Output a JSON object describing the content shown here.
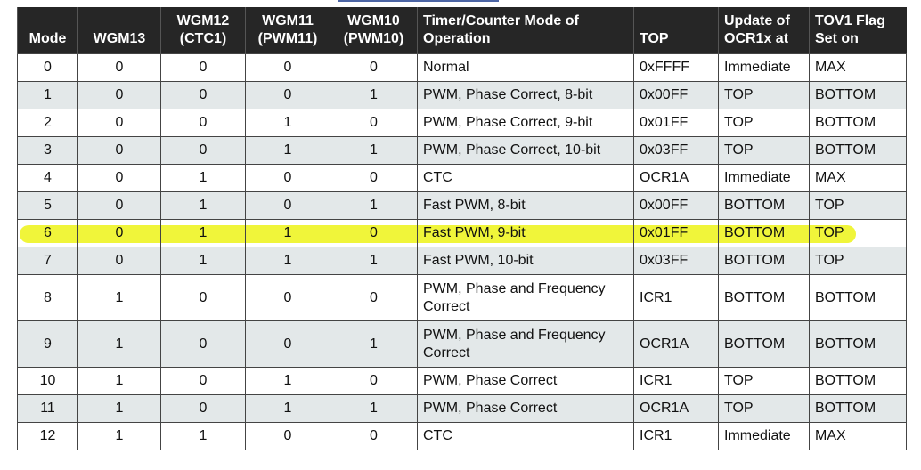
{
  "highlight_color": "#f0f53a",
  "header": [
    "Mode",
    "WGM13",
    "WGM12\n(CTC1)",
    "WGM11\n(PWM11)",
    "WGM10\n(PWM10)",
    "Timer/Counter Mode of\nOperation",
    "TOP",
    "Update of\nOCR1x at",
    "TOV1 Flag\nSet on"
  ],
  "rows": [
    [
      "0",
      "0",
      "0",
      "0",
      "0",
      "Normal",
      "0xFFFF",
      "Immediate",
      "MAX"
    ],
    [
      "1",
      "0",
      "0",
      "0",
      "1",
      "PWM, Phase Correct, 8-bit",
      "0x00FF",
      "TOP",
      "BOTTOM"
    ],
    [
      "2",
      "0",
      "0",
      "1",
      "0",
      "PWM, Phase Correct, 9-bit",
      "0x01FF",
      "TOP",
      "BOTTOM"
    ],
    [
      "3",
      "0",
      "0",
      "1",
      "1",
      "PWM, Phase Correct, 10-bit",
      "0x03FF",
      "TOP",
      "BOTTOM"
    ],
    [
      "4",
      "0",
      "1",
      "0",
      "0",
      "CTC",
      "OCR1A",
      "Immediate",
      "MAX"
    ],
    [
      "5",
      "0",
      "1",
      "0",
      "1",
      "Fast PWM, 8-bit",
      "0x00FF",
      "BOTTOM",
      "TOP"
    ],
    [
      "6",
      "0",
      "1",
      "1",
      "0",
      "Fast PWM, 9-bit",
      "0x01FF",
      "BOTTOM",
      "TOP"
    ],
    [
      "7",
      "0",
      "1",
      "1",
      "1",
      "Fast PWM, 10-bit",
      "0x03FF",
      "BOTTOM",
      "TOP"
    ],
    [
      "8",
      "1",
      "0",
      "0",
      "0",
      "PWM, Phase and Frequency\nCorrect",
      "ICR1",
      "BOTTOM",
      "BOTTOM"
    ],
    [
      "9",
      "1",
      "0",
      "0",
      "1",
      "PWM, Phase and Frequency\nCorrect",
      "OCR1A",
      "BOTTOM",
      "BOTTOM"
    ],
    [
      "10",
      "1",
      "0",
      "1",
      "0",
      "PWM, Phase Correct",
      "ICR1",
      "TOP",
      "BOTTOM"
    ],
    [
      "11",
      "1",
      "0",
      "1",
      "1",
      "PWM, Phase Correct",
      "OCR1A",
      "TOP",
      "BOTTOM"
    ],
    [
      "12",
      "1",
      "1",
      "0",
      "0",
      "CTC",
      "ICR1",
      "Immediate",
      "MAX"
    ]
  ],
  "highlighted_row": 6
}
